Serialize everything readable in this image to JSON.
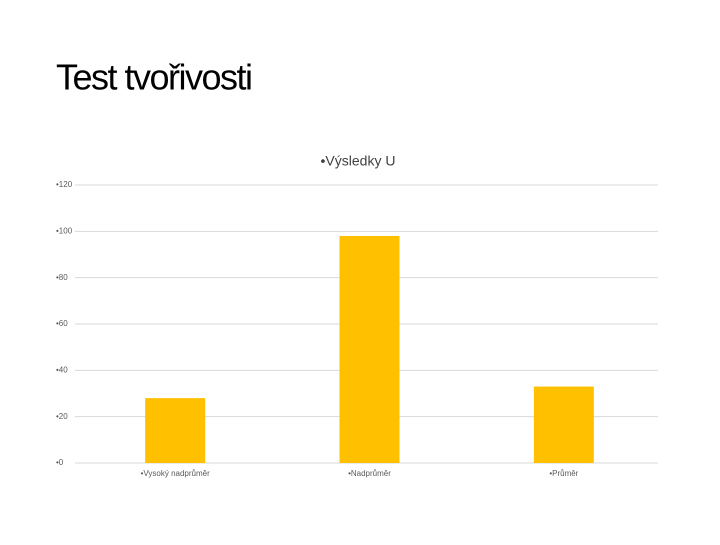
{
  "title": "Test tvořivosti",
  "chart_data": {
    "type": "bar",
    "title": "•Výsledky U",
    "categories": [
      "•Vysoký nadprůměr",
      "•Nadprůměr",
      "•Průměr"
    ],
    "values": [
      28,
      98,
      33
    ],
    "color": "#ffc000",
    "ylim": [
      0,
      120
    ],
    "yticks": [
      {
        "value": 0,
        "label": "•0"
      },
      {
        "value": 20,
        "label": "•20"
      },
      {
        "value": 40,
        "label": "•40"
      },
      {
        "value": 60,
        "label": "•60"
      },
      {
        "value": 80,
        "label": "•80"
      },
      {
        "value": 100,
        "label": "•100"
      },
      {
        "value": 120,
        "label": "•120"
      }
    ],
    "grid": true
  }
}
